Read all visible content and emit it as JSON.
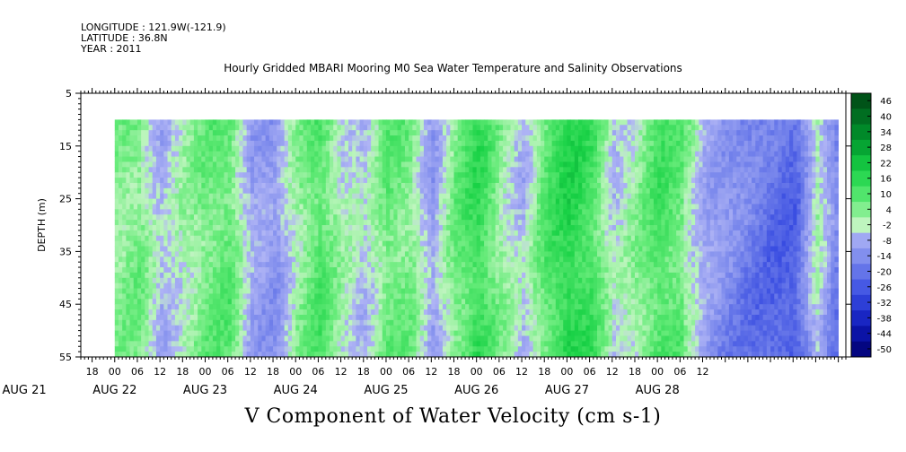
{
  "header": {
    "longitude": "LONGITUDE : 121.9W(-121.9)",
    "latitude": "LATITUDE : 36.8N",
    "year": "YEAR : 2011",
    "title": "Hourly Gridded MBARI Mooring M0 Sea Water Temperature and Salinity Observations"
  },
  "chart_data": {
    "type": "heatmap",
    "title": "V Component of Water Velocity (cm s-1)",
    "ylabel": "DEPTH (m)",
    "ylim": [
      5,
      55
    ],
    "y_inverted": true,
    "y_ticks": [
      5,
      15,
      25,
      35,
      45,
      55
    ],
    "data_depth_range": [
      10,
      55
    ],
    "x_range_hours": [
      -9,
      194
    ],
    "x_hour_ticks": [
      "18",
      "00",
      "06",
      "12",
      "18",
      "00",
      "06",
      "12",
      "18",
      "00",
      "06",
      "12",
      "18",
      "00",
      "06",
      "12",
      "18",
      "00",
      "06",
      "12",
      "18",
      "00",
      "06",
      "12",
      "18",
      "00",
      "06",
      "12"
    ],
    "x_day_labels": [
      "AUG 21",
      "AUG 22",
      "AUG 23",
      "AUG 24",
      "AUG 25",
      "AUG 26",
      "AUG 27",
      "AUG 28"
    ],
    "colorbar_levels": [
      "46",
      "40",
      "34",
      "28",
      "22",
      "16",
      "10",
      "4",
      "-2",
      "-8",
      "-14",
      "-20",
      "-26",
      "-32",
      "-38",
      "-44",
      "-50"
    ],
    "value_range": [
      -50,
      52
    ],
    "column_profile_hours": [
      0,
      6,
      12,
      18,
      24,
      30,
      36,
      42,
      48,
      54,
      60,
      66,
      72,
      78,
      84,
      90,
      96,
      102,
      108,
      114,
      120,
      126,
      132,
      138,
      144,
      150,
      156,
      162,
      168,
      174,
      180,
      186,
      192
    ],
    "column_profile_values": [
      6,
      8,
      -4,
      3,
      9,
      11,
      -6,
      -9,
      5,
      13,
      2,
      -2,
      10,
      8,
      -7,
      9,
      17,
      6,
      -3,
      12,
      20,
      15,
      -1,
      5,
      14,
      10,
      -3,
      -8,
      -12,
      -16,
      -18,
      5,
      -14
    ]
  }
}
